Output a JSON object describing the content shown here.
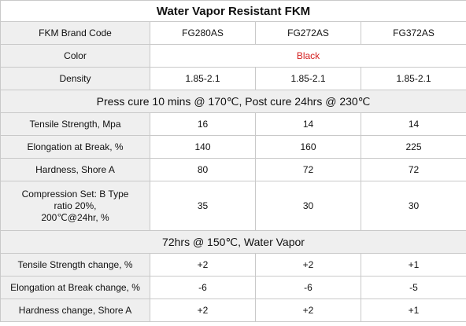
{
  "title": "Water Vapor Resistant FKM",
  "header": {
    "label": "FKM Brand Code",
    "codes": [
      "FG280AS",
      "FG272AS",
      "FG372AS"
    ]
  },
  "color_row": {
    "label": "Color",
    "value": "Black"
  },
  "density_row": {
    "label": "Density",
    "values": [
      "1.85-2.1",
      "1.85-2.1",
      "1.85-2.1"
    ]
  },
  "section1": "Press cure 10 mins @ 170℃, Post cure 24hrs @ 230℃",
  "properties": [
    {
      "label": "Tensile Strength, Mpa",
      "values": [
        "16",
        "14",
        "14"
      ]
    },
    {
      "label": "Elongation at Break, %",
      "values": [
        "140",
        "160",
        "225"
      ]
    },
    {
      "label": "Hardness, Shore A",
      "values": [
        "80",
        "72",
        "72"
      ]
    }
  ],
  "compression": {
    "label_line1": "Compression Set: B Type",
    "label_line2": "ratio 20%,",
    "label_line3": "200℃@24hr, %",
    "values": [
      "35",
      "30",
      "30"
    ]
  },
  "section2": "72hrs @ 150℃, Water Vapor",
  "changes": [
    {
      "label": "Tensile Strength change, %",
      "values": [
        "+2",
        "+2",
        "+1"
      ]
    },
    {
      "label": "Elongation at Break change, %",
      "values": [
        "-6",
        "-6",
        "-5"
      ]
    },
    {
      "label": "Hardness change, Shore A",
      "values": [
        "+2",
        "+2",
        "+1"
      ]
    }
  ]
}
